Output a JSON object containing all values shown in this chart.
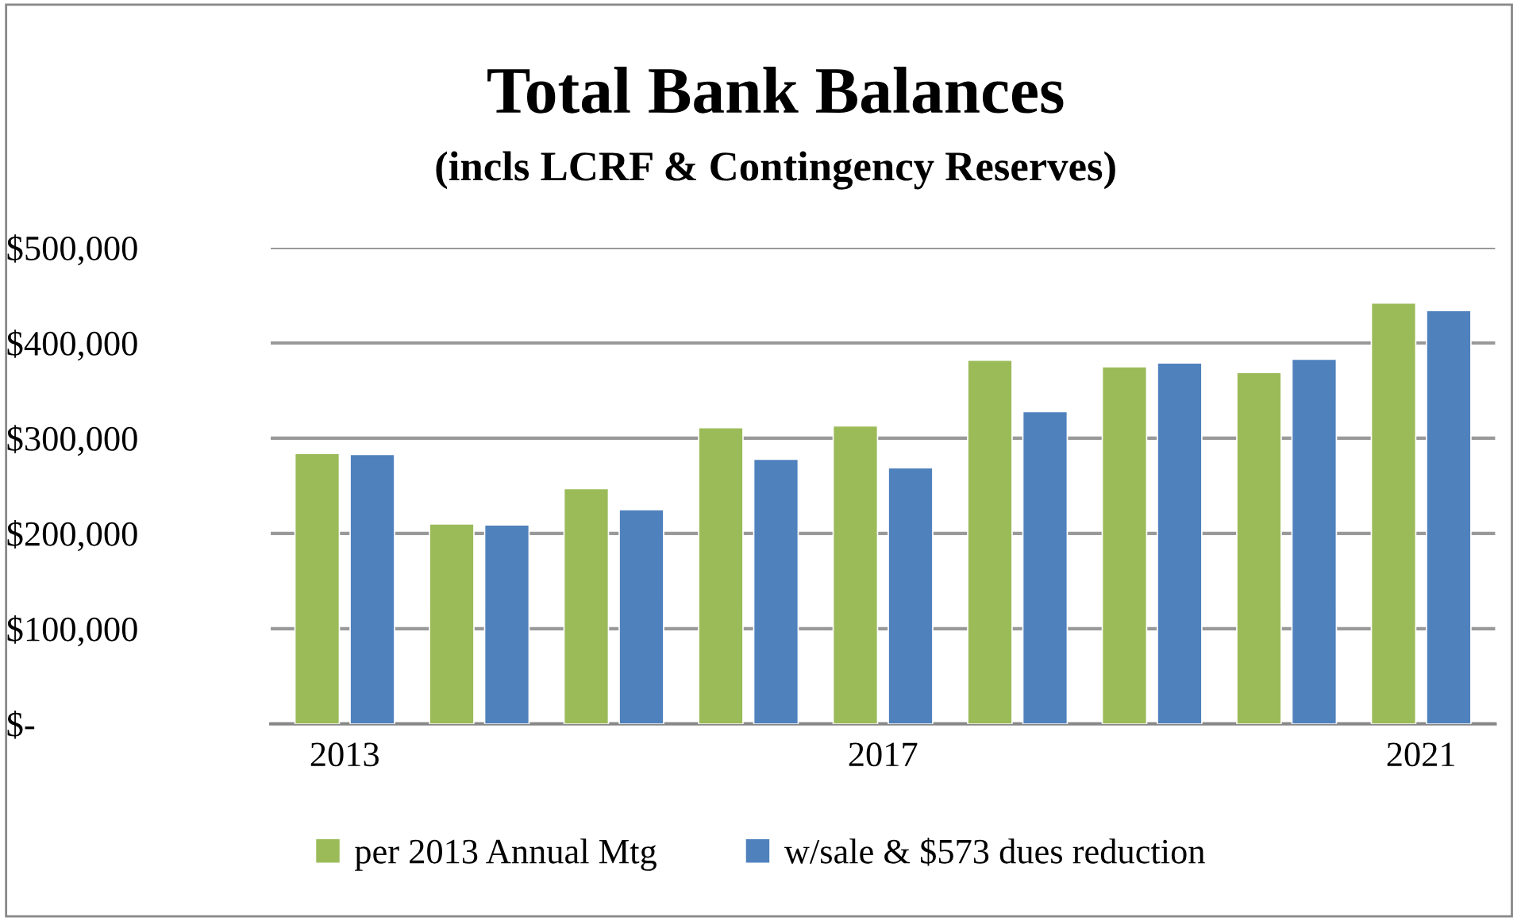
{
  "chart_data": {
    "type": "bar",
    "title": "Total Bank Balances",
    "subtitle": "(incls LCRF & Contingency Reserves)",
    "categories": [
      "2013",
      null,
      null,
      null,
      "2017",
      null,
      null,
      null,
      "2021"
    ],
    "series": [
      {
        "name": "per 2013 Annual Mtg",
        "color": "#9bbb59",
        "values": [
          284000,
          210000,
          247000,
          311000,
          313000,
          382000,
          375000,
          369000,
          442000
        ]
      },
      {
        "name": "w/sale & $573 dues reduction",
        "color": "#4f81bd",
        "values": [
          283000,
          209000,
          225000,
          278000,
          269000,
          328000,
          379000,
          383000,
          434000
        ]
      }
    ],
    "ylim": [
      0,
      500000
    ],
    "yticks": [
      {
        "value": 0,
        "label": "$-"
      },
      {
        "value": 100000,
        "label": "$100,000"
      },
      {
        "value": 200000,
        "label": "$200,000"
      },
      {
        "value": 300000,
        "label": "$300,000"
      },
      {
        "value": 400000,
        "label": "$400,000"
      },
      {
        "value": 500000,
        "label": "$500,000"
      }
    ],
    "grid": "y",
    "legend": "bottom"
  }
}
